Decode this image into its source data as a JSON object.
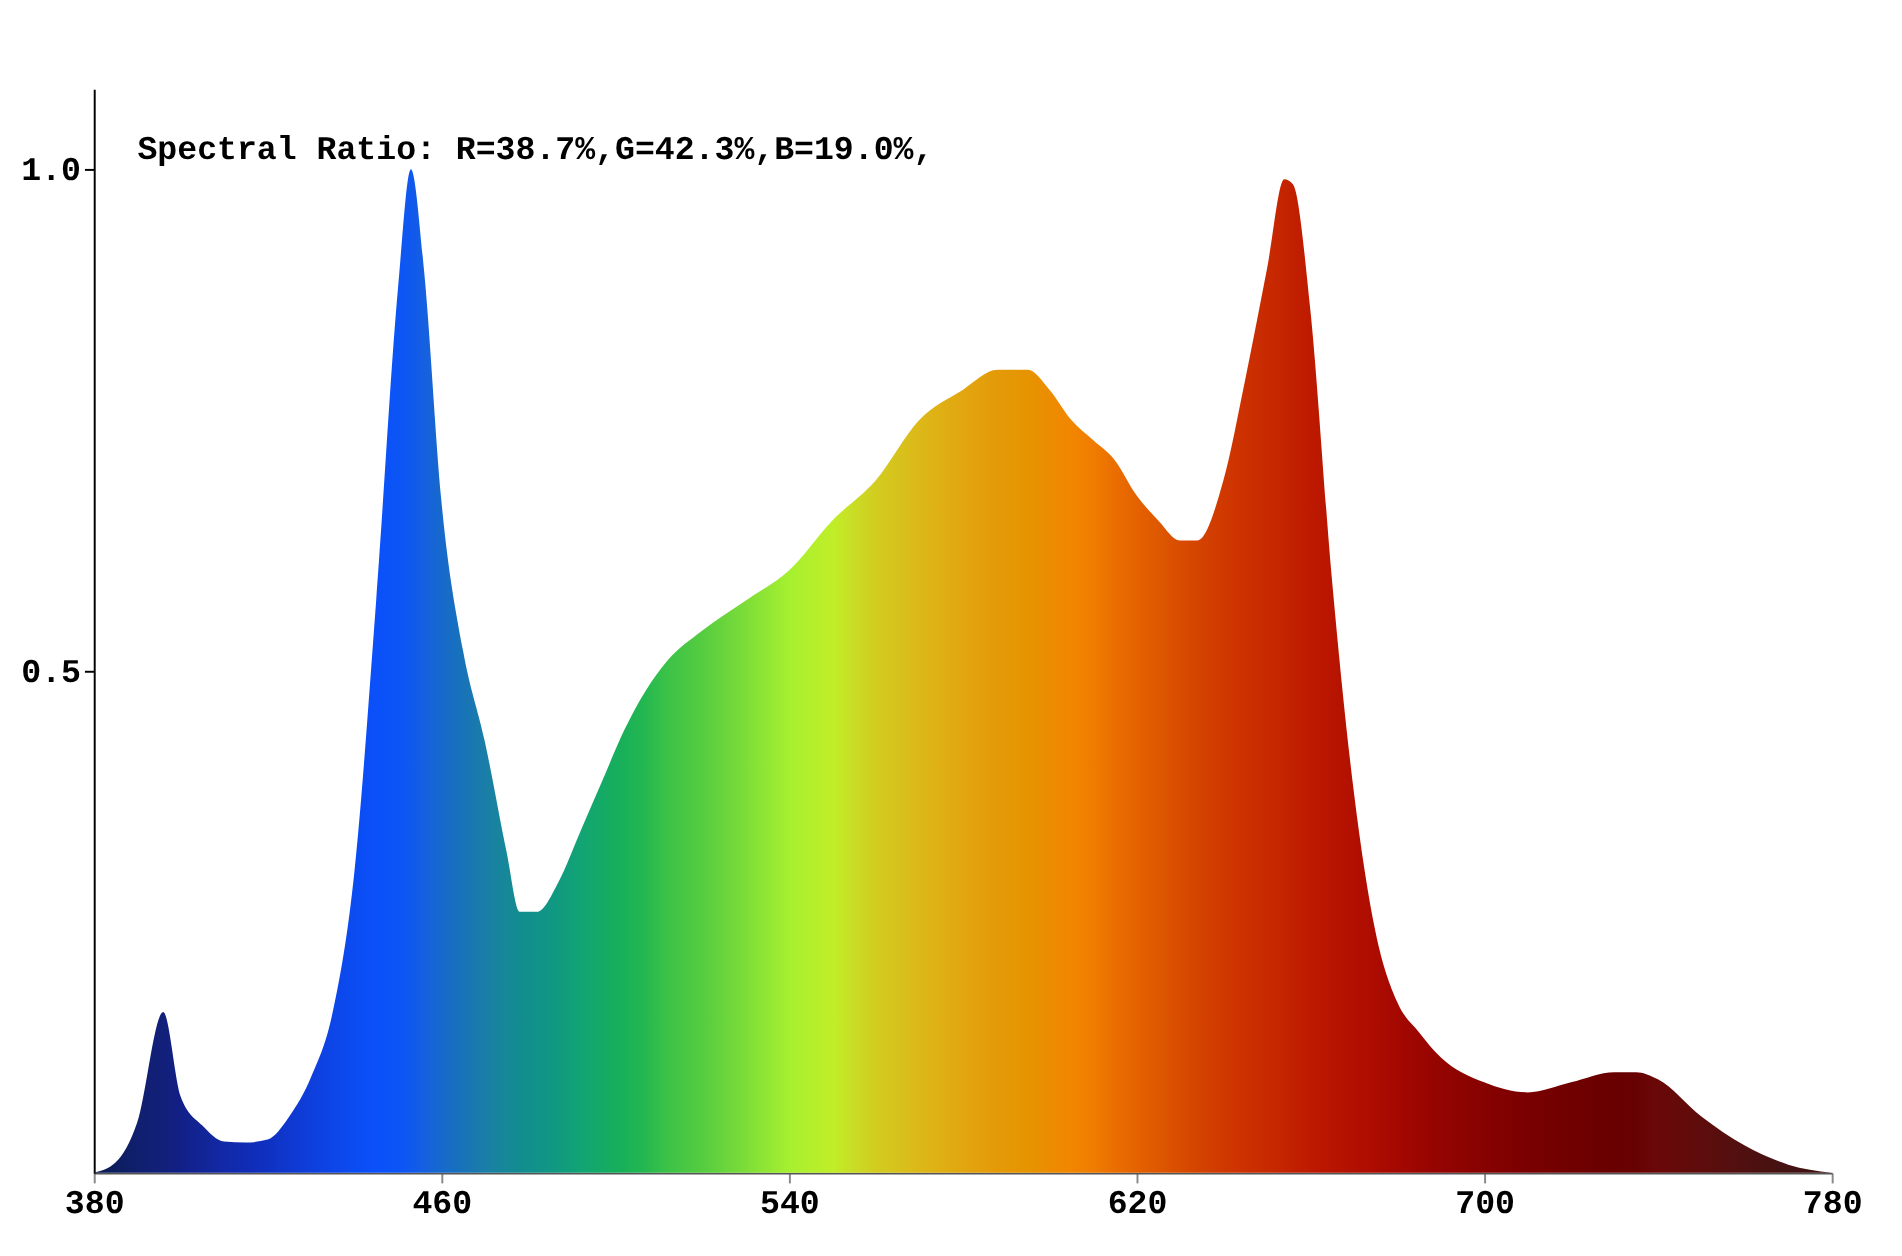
{
  "chart_data": {
    "type": "area",
    "title": "Spectral Ratio:  R=38.7%,G=42.3%,B=19.0%,",
    "x": [
      380,
      385,
      390,
      396,
      400,
      405,
      410,
      415,
      420,
      425,
      430,
      435,
      440,
      445,
      450,
      453,
      456,
      460,
      465,
      470,
      475,
      478,
      482,
      487,
      492,
      497,
      502,
      507,
      512,
      520,
      530,
      540,
      550,
      560,
      570,
      580,
      588,
      595,
      600,
      605,
      610,
      615,
      620,
      625,
      630,
      634,
      640,
      645,
      650,
      654,
      656,
      660,
      665,
      670,
      675,
      680,
      685,
      690,
      700,
      710,
      720,
      730,
      735,
      740,
      750,
      760,
      770,
      780
    ],
    "values": [
      0,
      0.01,
      0.05,
      0.16,
      0.076,
      0.047,
      0.031,
      0.03,
      0.033,
      0.056,
      0.095,
      0.16,
      0.3,
      0.57,
      0.88,
      1.0,
      0.9,
      0.67,
      0.52,
      0.43,
      0.32,
      0.26,
      0.26,
      0.29,
      0.34,
      0.39,
      0.44,
      0.48,
      0.51,
      0.54,
      0.57,
      0.6,
      0.65,
      0.69,
      0.75,
      0.78,
      0.8,
      0.8,
      0.78,
      0.75,
      0.73,
      0.71,
      0.675,
      0.65,
      0.63,
      0.63,
      0.69,
      0.79,
      0.9,
      0.99,
      0.985,
      0.86,
      0.59,
      0.38,
      0.24,
      0.17,
      0.14,
      0.115,
      0.09,
      0.08,
      0.09,
      0.1,
      0.1,
      0.093,
      0.056,
      0.027,
      0.008,
      0
    ],
    "colors": [
      "#0a1a50",
      "#0d1e60",
      "#101f6e",
      "#12207a",
      "#122088",
      "#122596",
      "#1229a8",
      "#102cb4",
      "#0f31c2",
      "#0f38cf",
      "#0e3fdc",
      "#0d45e8",
      "#0b4cf2",
      "#0b50fa",
      "#0c55f5",
      "#1058ee",
      "#1560e0",
      "#1769cc",
      "#1873b8",
      "#1a7ea8",
      "#168898",
      "#128c90",
      "#11928a",
      "#109a80",
      "#12a474",
      "#14aa66",
      "#19b058",
      "#25b850",
      "#3cc248",
      "#55cc40",
      "#7ddd38",
      "#a6f030",
      "#c0ee28",
      "#d2cc20",
      "#dcb818",
      "#e2a610",
      "#e49a08",
      "#e69400",
      "#ec8c00",
      "#f28600",
      "#f07c00",
      "#ea6e00",
      "#e46200",
      "#de5800",
      "#d84c00",
      "#d44400",
      "#d03800",
      "#cc3000",
      "#c82a00",
      "#c42400",
      "#c22000",
      "#be1a00",
      "#b81400",
      "#b21000",
      "#ac0c00",
      "#a40800",
      "#9c0600",
      "#940400",
      "#860200",
      "#7a0000",
      "#700000",
      "#680000",
      "#680202",
      "#6a0808",
      "#5e0c0c",
      "#501010",
      "#441212",
      "#3c1010"
    ],
    "xlim": [
      380,
      780
    ],
    "ylim": [
      0,
      1.08
    ],
    "xticks": [
      380,
      460,
      540,
      620,
      700,
      780
    ],
    "yticks": [
      {
        "value": 0.5,
        "label": "0.5"
      },
      {
        "value": 1.0,
        "label": "1.0"
      }
    ],
    "grid": false
  }
}
